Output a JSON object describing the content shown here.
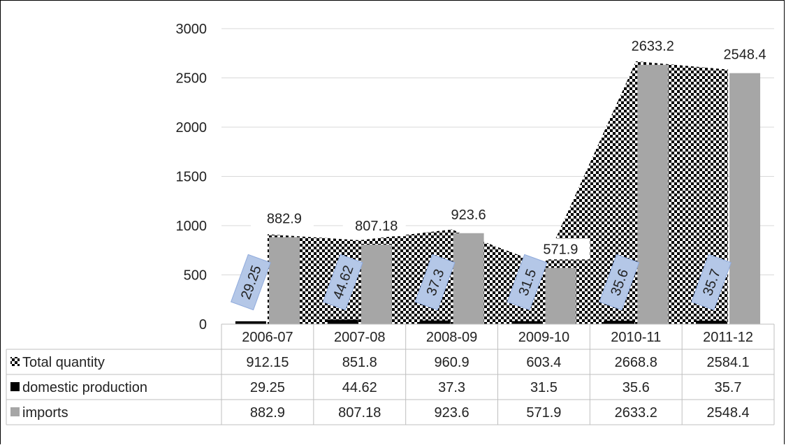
{
  "chart_data": {
    "type": "bar",
    "ylim": [
      0,
      3000
    ],
    "yticks": [
      0,
      500,
      1000,
      1500,
      2000,
      2500,
      3000
    ],
    "grid": true,
    "legend": "data-table",
    "categories": [
      "2006-07",
      "2007-08",
      "2008-09",
      "2009-10",
      "2010-11",
      "2011-12"
    ],
    "series": [
      {
        "name": "Total quantity",
        "render": "area",
        "pattern": "checker",
        "values": [
          912.15,
          851.8,
          960.9,
          603.4,
          2668.8,
          2584.1
        ]
      },
      {
        "name": "domestic production",
        "render": "bar",
        "color": "#000000",
        "values": [
          29.25,
          44.62,
          37.3,
          31.5,
          35.6,
          35.7
        ]
      },
      {
        "name": "imports",
        "render": "bar",
        "color": "#a6a6a6",
        "values": [
          882.9,
          807.18,
          923.6,
          571.9,
          2633.2,
          2548.4
        ]
      }
    ],
    "data_labels": {
      "domestic production": [
        "29.25",
        "44.62",
        "37.3",
        "31.5",
        "35.6",
        "35.7"
      ],
      "imports": [
        "882.9",
        "807.18",
        "923.6",
        "571.9",
        "2633.2",
        "2548.4"
      ]
    },
    "table": {
      "rows": [
        {
          "label": "Total quantity",
          "values": [
            "912.15",
            "851.8",
            "960.9",
            "603.4",
            "2668.8",
            "2584.1"
          ]
        },
        {
          "label": "domestic production",
          "values": [
            "29.25",
            "44.62",
            "37.3",
            "31.5",
            "35.6",
            "35.7"
          ]
        },
        {
          "label": "imports",
          "values": [
            "882.9",
            "807.18",
            "923.6",
            "571.9",
            "2633.2",
            "2548.4"
          ]
        }
      ]
    }
  }
}
